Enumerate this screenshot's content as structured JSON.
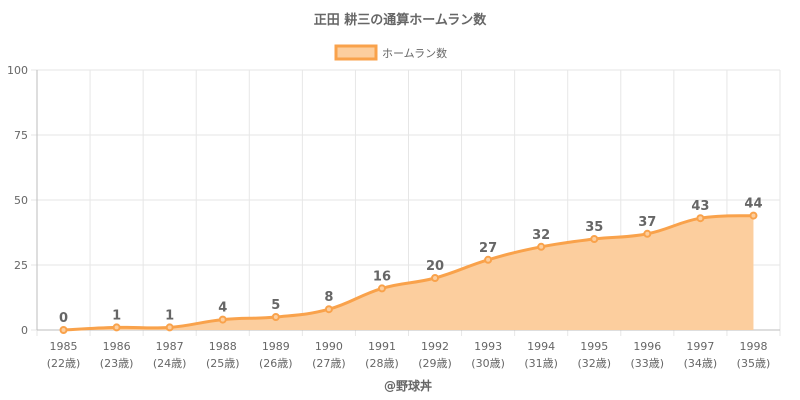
{
  "chart_data": {
    "type": "area",
    "title": "正田 耕三の通算ホームラン数",
    "legend": {
      "label": "ホームラン数",
      "placement": "top-center"
    },
    "credit": "@野球丼",
    "x": [
      "1985",
      "1986",
      "1987",
      "1988",
      "1989",
      "1990",
      "1991",
      "1992",
      "1993",
      "1994",
      "1995",
      "1996",
      "1997",
      "1998"
    ],
    "x_sublabels": [
      "(22歳)",
      "(23歳)",
      "(24歳)",
      "(25歳)",
      "(26歳)",
      "(27歳)",
      "(28歳)",
      "(29歳)",
      "(30歳)",
      "(31歳)",
      "(32歳)",
      "(33歳)",
      "(34歳)",
      "(35歳)"
    ],
    "series": [
      {
        "name": "ホームラン数",
        "values": [
          0,
          1,
          1,
          4,
          5,
          8,
          16,
          20,
          27,
          32,
          35,
          37,
          43,
          44
        ]
      }
    ],
    "ylim": [
      0,
      100
    ],
    "yticks": [
      0,
      25,
      50,
      75,
      100
    ],
    "grid": true,
    "colors": {
      "line": "#F9A24B",
      "fill": "#FCCE9E"
    }
  }
}
